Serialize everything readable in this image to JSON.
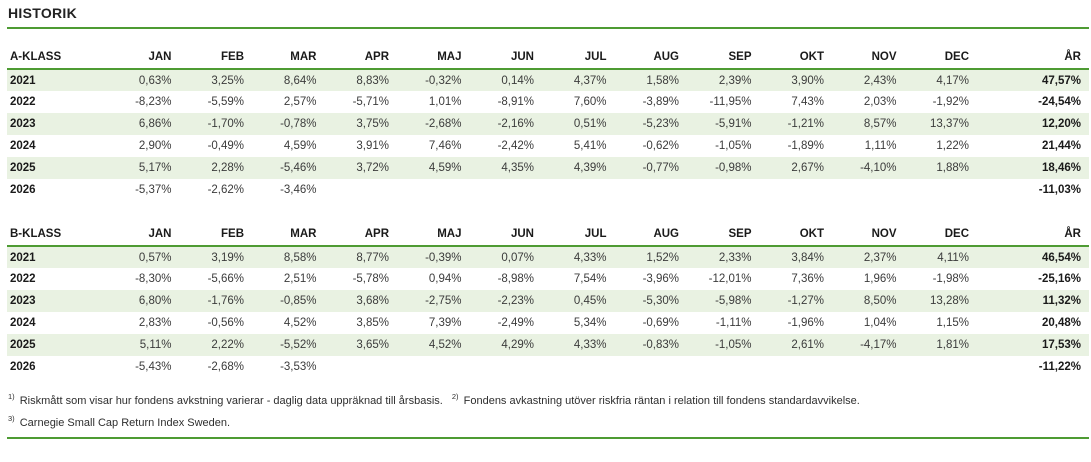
{
  "page": {
    "title": "HISTORIK"
  },
  "colors": {
    "accent_green": "#4e9b33",
    "row_stripe": "#e9f2e2"
  },
  "tables": [
    {
      "name": "A-KLASS",
      "columns": [
        "JAN",
        "FEB",
        "MAR",
        "APR",
        "MAJ",
        "JUN",
        "JUL",
        "AUG",
        "SEP",
        "OKT",
        "NOV",
        "DEC",
        "ÅR"
      ],
      "rows": [
        {
          "year": "2021",
          "values": [
            "0,63%",
            "3,25%",
            "8,64%",
            "8,83%",
            "-0,32%",
            "0,14%",
            "4,37%",
            "1,58%",
            "2,39%",
            "3,90%",
            "2,43%",
            "4,17%"
          ],
          "total": "47,57%"
        },
        {
          "year": "2022",
          "values": [
            "-8,23%",
            "-5,59%",
            "2,57%",
            "-5,71%",
            "1,01%",
            "-8,91%",
            "7,60%",
            "-3,89%",
            "-11,95%",
            "7,43%",
            "2,03%",
            "-1,92%"
          ],
          "total": "-24,54%"
        },
        {
          "year": "2023",
          "values": [
            "6,86%",
            "-1,70%",
            "-0,78%",
            "3,75%",
            "-2,68%",
            "-2,16%",
            "0,51%",
            "-5,23%",
            "-5,91%",
            "-1,21%",
            "8,57%",
            "13,37%"
          ],
          "total": "12,20%"
        },
        {
          "year": "2024",
          "values": [
            "2,90%",
            "-0,49%",
            "4,59%",
            "3,91%",
            "7,46%",
            "-2,42%",
            "5,41%",
            "-0,62%",
            "-1,05%",
            "-1,89%",
            "1,11%",
            "1,22%"
          ],
          "total": "21,44%"
        },
        {
          "year": "2025",
          "values": [
            "5,17%",
            "2,28%",
            "-5,46%",
            "3,72%",
            "4,59%",
            "4,35%",
            "4,39%",
            "-0,77%",
            "-0,98%",
            "2,67%",
            "-4,10%",
            "1,88%"
          ],
          "total": "18,46%"
        },
        {
          "year": "2026",
          "values": [
            "-5,37%",
            "-2,62%",
            "-3,46%"
          ],
          "total": "-11,03%"
        }
      ]
    },
    {
      "name": "B-KLASS",
      "columns": [
        "JAN",
        "FEB",
        "MAR",
        "APR",
        "MAJ",
        "JUN",
        "JUL",
        "AUG",
        "SEP",
        "OKT",
        "NOV",
        "DEC",
        "ÅR"
      ],
      "rows": [
        {
          "year": "2021",
          "values": [
            "0,57%",
            "3,19%",
            "8,58%",
            "8,77%",
            "-0,39%",
            "0,07%",
            "4,33%",
            "1,52%",
            "2,33%",
            "3,84%",
            "2,37%",
            "4,11%"
          ],
          "total": "46,54%"
        },
        {
          "year": "2022",
          "values": [
            "-8,30%",
            "-5,66%",
            "2,51%",
            "-5,78%",
            "0,94%",
            "-8,98%",
            "7,54%",
            "-3,96%",
            "-12,01%",
            "7,36%",
            "1,96%",
            "-1,98%"
          ],
          "total": "-25,16%"
        },
        {
          "year": "2023",
          "values": [
            "6,80%",
            "-1,76%",
            "-0,85%",
            "3,68%",
            "-2,75%",
            "-2,23%",
            "0,45%",
            "-5,30%",
            "-5,98%",
            "-1,27%",
            "8,50%",
            "13,28%"
          ],
          "total": "11,32%"
        },
        {
          "year": "2024",
          "values": [
            "2,83%",
            "-0,56%",
            "4,52%",
            "3,85%",
            "7,39%",
            "-2,49%",
            "5,34%",
            "-0,69%",
            "-1,11%",
            "-1,96%",
            "1,04%",
            "1,15%"
          ],
          "total": "20,48%"
        },
        {
          "year": "2025",
          "values": [
            "5,11%",
            "2,22%",
            "-5,52%",
            "3,65%",
            "4,52%",
            "4,29%",
            "4,33%",
            "-0,83%",
            "-1,05%",
            "2,61%",
            "-4,17%",
            "1,81%"
          ],
          "total": "17,53%"
        },
        {
          "year": "2026",
          "values": [
            "-5,43%",
            "-2,68%",
            "-3,53%"
          ],
          "total": "-11,22%"
        }
      ]
    }
  ],
  "footnotes": [
    {
      "marker": "1)",
      "text": "Riskmått som visar hur fondens avkstning varierar - daglig data uppräknad till årsbasis."
    },
    {
      "marker": "2)",
      "text": "Fondens avkastning utöver riskfria räntan i relation till fondens standardavvikelse."
    },
    {
      "marker": "3)",
      "text": "Carnegie Small Cap Return Index Sweden."
    }
  ]
}
